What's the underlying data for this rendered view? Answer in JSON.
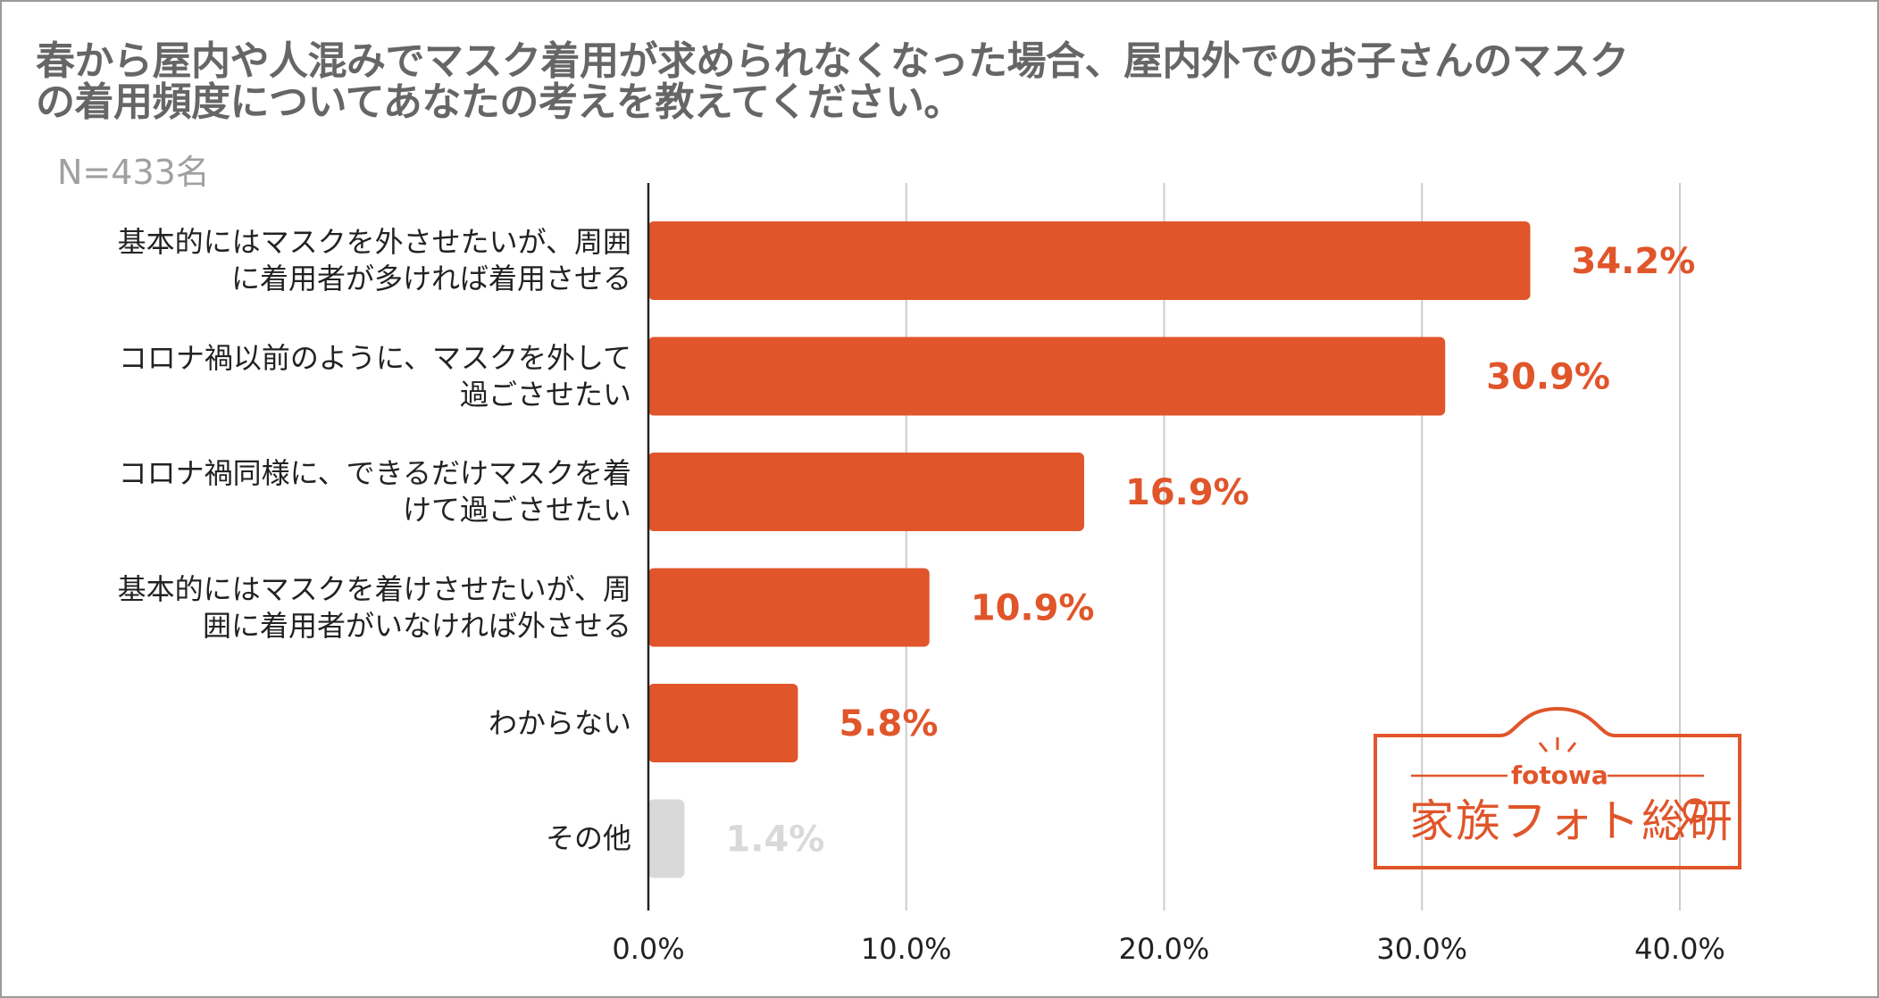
{
  "chart_data": {
    "type": "bar",
    "orientation": "horizontal",
    "title_lines": [
      "春から屋内や人混みでマスク着用が求められなくなった場合、屋内外でのお子さんのマスク",
      "の着用頻度についてあなたの考えを教えてください。"
    ],
    "subtitle": "N=433名",
    "categories": [
      [
        "基本的にはマスクを外させたいが、周囲",
        "に着用者が多ければ着用させる"
      ],
      [
        "コロナ禍以前のように、マスクを外して",
        "過ごさせたい"
      ],
      [
        "コロナ禍同様に、できるだけマスクを着",
        "けて過ごさせたい"
      ],
      [
        "基本的にはマスクを着けさせたいが、周",
        "囲に着用者がいなければ外させる"
      ],
      [
        "わからない"
      ],
      [
        "その他"
      ]
    ],
    "values": [
      34.2,
      30.9,
      16.9,
      10.9,
      5.8,
      1.4
    ],
    "value_labels": [
      "34.2%",
      "30.9%",
      "16.9%",
      "10.9%",
      "5.8%",
      "1.4%"
    ],
    "bar_colors": [
      "#e0552a",
      "#e0552a",
      "#e0552a",
      "#e0552a",
      "#e0552a",
      "#d9d9d9"
    ],
    "label_colors": [
      "#e0552a",
      "#e0552a",
      "#e0552a",
      "#e0552a",
      "#e0552a",
      "#d9d9d9"
    ],
    "xlim": [
      0,
      40
    ],
    "xticks": [
      0,
      10,
      20,
      30,
      40
    ],
    "xtick_labels": [
      "0.0%",
      "10.0%",
      "20.0%",
      "30.0%",
      "40.0%"
    ],
    "grid": true,
    "grid_color": "#cccccc"
  },
  "logo": {
    "brand": "fotowa",
    "name": "家族フォト総研",
    "color": "#e0552a",
    "icon": "magnifier-icon"
  }
}
